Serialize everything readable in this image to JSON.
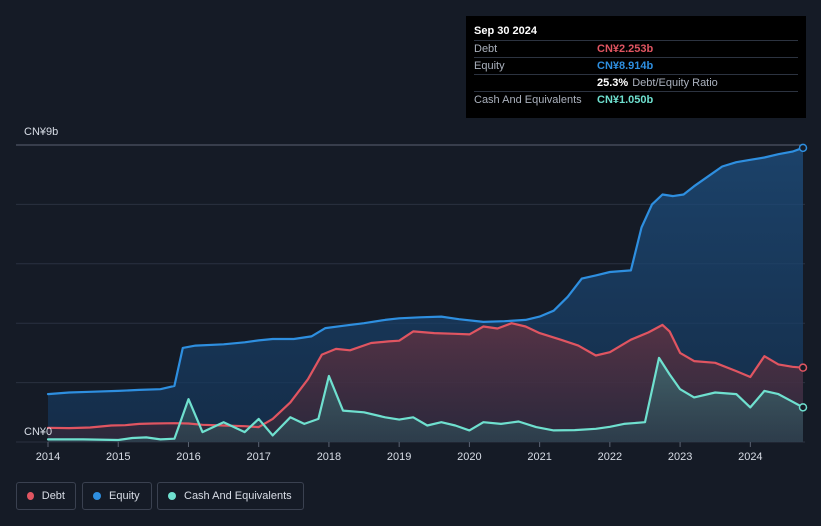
{
  "tooltip": {
    "date": "Sep 30 2024",
    "debt_label": "Debt",
    "debt_value": "CN¥2.253b",
    "equity_label": "Equity",
    "equity_value": "CN¥8.914b",
    "ratio_value": "25.3%",
    "ratio_label": "Debt/Equity Ratio",
    "cash_label": "Cash And Equivalents",
    "cash_value": "CN¥1.050b"
  },
  "legend": {
    "debt": "Debt",
    "equity": "Equity",
    "cash": "Cash And Equivalents"
  },
  "colors": {
    "debt": "#e05561",
    "equity": "#2e8fe0",
    "cash": "#6fe0cf",
    "background": "#151b26"
  },
  "chart_data": {
    "type": "area",
    "y_unit": "CN¥b",
    "ylim": [
      0,
      9
    ],
    "y_tick_labels": [
      "CN¥0",
      "CN¥9b"
    ],
    "x_tick_labels": [
      "2014",
      "2015",
      "2016",
      "2017",
      "2018",
      "2019",
      "2020",
      "2021",
      "2022",
      "2023",
      "2024"
    ],
    "grid": true,
    "legend_position": "bottom-left",
    "series": [
      {
        "name": "Equity",
        "points": [
          [
            2014.0,
            1.45
          ],
          [
            2014.3,
            1.5
          ],
          [
            2014.6,
            1.52
          ],
          [
            2015.0,
            1.55
          ],
          [
            2015.3,
            1.58
          ],
          [
            2015.6,
            1.6
          ],
          [
            2015.8,
            1.7
          ],
          [
            2015.92,
            2.85
          ],
          [
            2016.1,
            2.92
          ],
          [
            2016.5,
            2.96
          ],
          [
            2016.8,
            3.02
          ],
          [
            2017.0,
            3.08
          ],
          [
            2017.2,
            3.12
          ],
          [
            2017.5,
            3.12
          ],
          [
            2017.75,
            3.2
          ],
          [
            2017.95,
            3.45
          ],
          [
            2018.2,
            3.52
          ],
          [
            2018.5,
            3.6
          ],
          [
            2018.8,
            3.7
          ],
          [
            2019.0,
            3.75
          ],
          [
            2019.3,
            3.78
          ],
          [
            2019.6,
            3.8
          ],
          [
            2019.85,
            3.72
          ],
          [
            2020.2,
            3.64
          ],
          [
            2020.5,
            3.66
          ],
          [
            2020.8,
            3.7
          ],
          [
            2021.0,
            3.8
          ],
          [
            2021.2,
            3.98
          ],
          [
            2021.4,
            4.4
          ],
          [
            2021.6,
            4.95
          ],
          [
            2021.8,
            5.05
          ],
          [
            2022.0,
            5.15
          ],
          [
            2022.3,
            5.2
          ],
          [
            2022.45,
            6.5
          ],
          [
            2022.6,
            7.2
          ],
          [
            2022.75,
            7.5
          ],
          [
            2022.9,
            7.45
          ],
          [
            2023.05,
            7.5
          ],
          [
            2023.2,
            7.75
          ],
          [
            2023.4,
            8.05
          ],
          [
            2023.6,
            8.35
          ],
          [
            2023.8,
            8.48
          ],
          [
            2024.0,
            8.55
          ],
          [
            2024.2,
            8.62
          ],
          [
            2024.4,
            8.72
          ],
          [
            2024.6,
            8.8
          ],
          [
            2024.75,
            8.914
          ]
        ]
      },
      {
        "name": "Debt",
        "points": [
          [
            2014.0,
            0.43
          ],
          [
            2014.3,
            0.42
          ],
          [
            2014.6,
            0.44
          ],
          [
            2014.9,
            0.5
          ],
          [
            2015.1,
            0.51
          ],
          [
            2015.3,
            0.55
          ],
          [
            2015.5,
            0.56
          ],
          [
            2015.8,
            0.57
          ],
          [
            2016.0,
            0.56
          ],
          [
            2016.2,
            0.52
          ],
          [
            2016.5,
            0.5
          ],
          [
            2016.8,
            0.48
          ],
          [
            2017.0,
            0.45
          ],
          [
            2017.2,
            0.7
          ],
          [
            2017.45,
            1.2
          ],
          [
            2017.7,
            1.9
          ],
          [
            2017.9,
            2.65
          ],
          [
            2018.1,
            2.82
          ],
          [
            2018.3,
            2.78
          ],
          [
            2018.6,
            3.0
          ],
          [
            2018.85,
            3.05
          ],
          [
            2019.0,
            3.07
          ],
          [
            2019.2,
            3.35
          ],
          [
            2019.5,
            3.3
          ],
          [
            2019.8,
            3.28
          ],
          [
            2020.0,
            3.26
          ],
          [
            2020.2,
            3.5
          ],
          [
            2020.4,
            3.44
          ],
          [
            2020.6,
            3.6
          ],
          [
            2020.8,
            3.5
          ],
          [
            2021.0,
            3.3
          ],
          [
            2021.3,
            3.1
          ],
          [
            2021.55,
            2.92
          ],
          [
            2021.8,
            2.62
          ],
          [
            2022.0,
            2.72
          ],
          [
            2022.3,
            3.1
          ],
          [
            2022.55,
            3.32
          ],
          [
            2022.75,
            3.55
          ],
          [
            2022.85,
            3.35
          ],
          [
            2023.0,
            2.7
          ],
          [
            2023.2,
            2.45
          ],
          [
            2023.5,
            2.4
          ],
          [
            2023.8,
            2.15
          ],
          [
            2024.0,
            1.97
          ],
          [
            2024.2,
            2.6
          ],
          [
            2024.4,
            2.35
          ],
          [
            2024.6,
            2.28
          ],
          [
            2024.75,
            2.253
          ]
        ]
      },
      {
        "name": "Cash And Equivalents",
        "points": [
          [
            2014.0,
            0.08
          ],
          [
            2014.5,
            0.08
          ],
          [
            2015.0,
            0.06
          ],
          [
            2015.2,
            0.12
          ],
          [
            2015.4,
            0.14
          ],
          [
            2015.6,
            0.08
          ],
          [
            2015.8,
            0.1
          ],
          [
            2016.0,
            1.3
          ],
          [
            2016.2,
            0.3
          ],
          [
            2016.5,
            0.6
          ],
          [
            2016.8,
            0.3
          ],
          [
            2017.0,
            0.7
          ],
          [
            2017.2,
            0.2
          ],
          [
            2017.45,
            0.75
          ],
          [
            2017.65,
            0.55
          ],
          [
            2017.85,
            0.7
          ],
          [
            2018.0,
            2.0
          ],
          [
            2018.2,
            0.95
          ],
          [
            2018.5,
            0.9
          ],
          [
            2018.8,
            0.75
          ],
          [
            2019.0,
            0.68
          ],
          [
            2019.2,
            0.75
          ],
          [
            2019.4,
            0.5
          ],
          [
            2019.6,
            0.6
          ],
          [
            2019.8,
            0.5
          ],
          [
            2020.0,
            0.35
          ],
          [
            2020.2,
            0.6
          ],
          [
            2020.45,
            0.55
          ],
          [
            2020.7,
            0.62
          ],
          [
            2020.95,
            0.45
          ],
          [
            2021.2,
            0.35
          ],
          [
            2021.5,
            0.36
          ],
          [
            2021.8,
            0.4
          ],
          [
            2022.0,
            0.46
          ],
          [
            2022.2,
            0.55
          ],
          [
            2022.5,
            0.6
          ],
          [
            2022.7,
            2.55
          ],
          [
            2022.85,
            2.05
          ],
          [
            2023.0,
            1.6
          ],
          [
            2023.2,
            1.35
          ],
          [
            2023.5,
            1.5
          ],
          [
            2023.8,
            1.45
          ],
          [
            2024.0,
            1.05
          ],
          [
            2024.2,
            1.55
          ],
          [
            2024.4,
            1.45
          ],
          [
            2024.6,
            1.22
          ],
          [
            2024.75,
            1.05
          ]
        ]
      }
    ]
  }
}
